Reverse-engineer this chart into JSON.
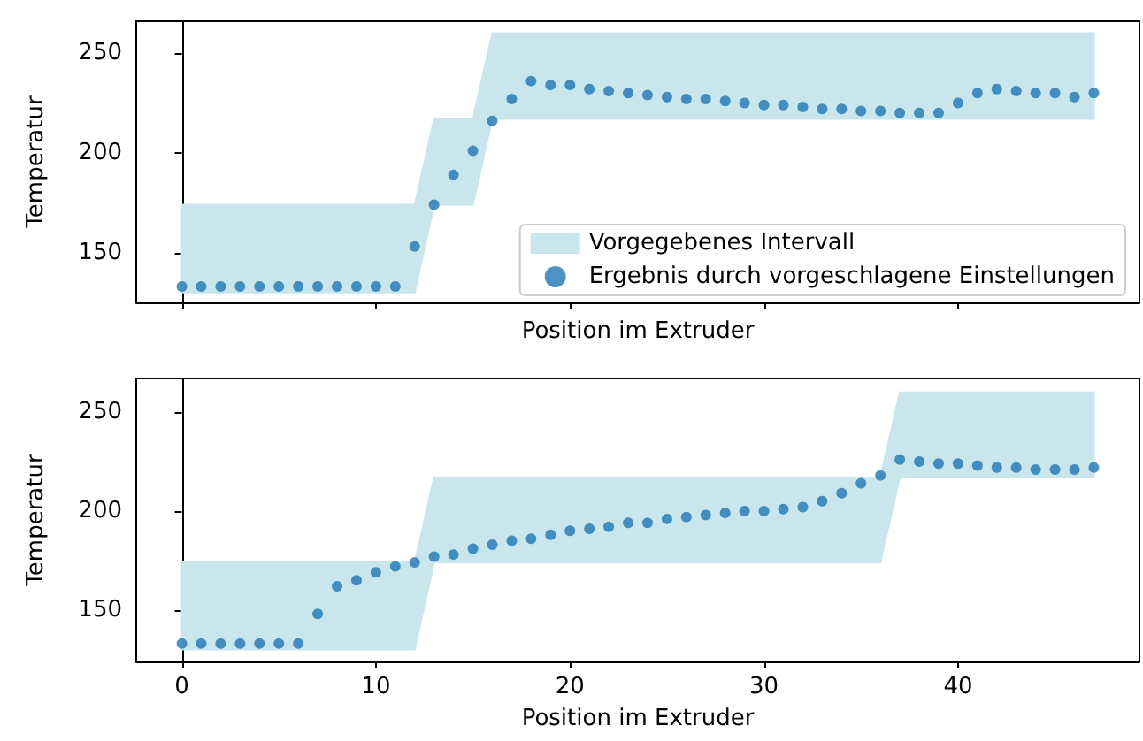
{
  "chart_data": [
    {
      "type": "scatter",
      "xlabel": "Position im Extruder",
      "ylabel": "Temperatur",
      "xlim": [
        -2.35,
        49.35
      ],
      "xticks": [
        0,
        10,
        20,
        30,
        40
      ],
      "ylim": [
        125,
        266
      ],
      "yticks": [
        150,
        200,
        250
      ],
      "tick_labels": "y",
      "legend": "bottom right",
      "marker": "circle",
      "series": [
        {
          "type": "area",
          "name": "Vorgegebenes Intervall",
          "color": "#c8e6ec",
          "x": [
            0,
            12,
            13,
            15,
            16,
            47
          ],
          "values": [
            null,
            null,
            null,
            null,
            null,
            null
          ],
          "lower": [
            130,
            130,
            174,
            174,
            217,
            217
          ],
          "upper": [
            174,
            174,
            217,
            217,
            260,
            260
          ]
        },
        {
          "name": "Ergebnis durch vorgeschlagene Einstellungen",
          "color": "#1f77b4",
          "x": [
            0,
            1,
            2,
            3,
            4,
            5,
            6,
            7,
            8,
            9,
            10,
            11,
            12,
            13,
            14,
            15,
            16,
            17,
            18,
            19,
            20,
            21,
            22,
            23,
            24,
            25,
            26,
            27,
            28,
            29,
            30,
            31,
            32,
            33,
            34,
            35,
            36,
            37,
            38,
            39,
            40,
            41,
            42,
            43,
            44,
            45,
            46,
            47
          ],
          "values": [
            133,
            133,
            133,
            133,
            133,
            133,
            133,
            133,
            133,
            133,
            133,
            133,
            153,
            174,
            189,
            201,
            216,
            227,
            236,
            234,
            234,
            232,
            231,
            230,
            229,
            228,
            227,
            227,
            226,
            225,
            224,
            224,
            223,
            222,
            222,
            221,
            221,
            220,
            220,
            220,
            225,
            230,
            232,
            231,
            230,
            230,
            228,
            230
          ]
        }
      ]
    },
    {
      "type": "scatter",
      "xlabel": "Position im Extruder",
      "ylabel": "Temperatur",
      "xlim": [
        -2.35,
        49.35
      ],
      "xticks": [
        0,
        10,
        20,
        30,
        40
      ],
      "ylim": [
        124,
        267
      ],
      "yticks": [
        150,
        200,
        250
      ],
      "marker": "circle",
      "series": [
        {
          "type": "area",
          "color": "#c8e6ec",
          "x": [
            0,
            12,
            13,
            36,
            37,
            47
          ],
          "values": [
            null,
            null,
            null,
            null,
            null,
            null
          ],
          "lower": [
            130,
            130,
            174,
            174,
            217,
            217
          ],
          "upper": [
            174,
            174,
            217,
            217,
            260,
            260
          ]
        },
        {
          "color": "#1f77b4",
          "x": [
            0,
            1,
            2,
            3,
            4,
            5,
            6,
            7,
            8,
            9,
            10,
            11,
            12,
            13,
            14,
            15,
            16,
            17,
            18,
            19,
            20,
            21,
            22,
            23,
            24,
            25,
            26,
            27,
            28,
            29,
            30,
            31,
            32,
            33,
            34,
            35,
            36,
            37,
            38,
            39,
            40,
            41,
            42,
            43,
            44,
            45,
            46,
            47
          ],
          "values": [
            133,
            133,
            133,
            133,
            133,
            133,
            133,
            148,
            162,
            165,
            169,
            172,
            174,
            177,
            178,
            181,
            183,
            185,
            186,
            188,
            190,
            191,
            192,
            194,
            194,
            196,
            197,
            198,
            199,
            200,
            200,
            201,
            202,
            205,
            209,
            214,
            218,
            226,
            225,
            224,
            224,
            223,
            222,
            222,
            221,
            221,
            221,
            222
          ]
        }
      ]
    }
  ]
}
